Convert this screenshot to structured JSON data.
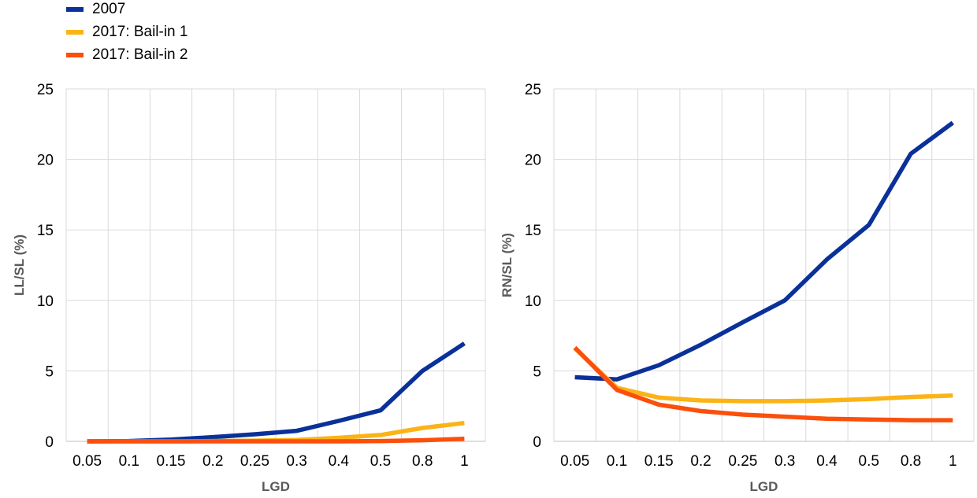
{
  "legend": {
    "items": [
      {
        "label": "2007",
        "color": "#0a3199"
      },
      {
        "label": "2017: Bail-in 1",
        "color": "#fbb316"
      },
      {
        "label": "2017: Bail-in 2",
        "color": "#fb4f0c"
      }
    ]
  },
  "chart_data": [
    {
      "type": "line",
      "title": "",
      "xlabel": "LGD",
      "ylabel": "LL/SL (%)",
      "categories": [
        "0.05",
        "0.1",
        "0.15",
        "0.2",
        "0.25",
        "0.3",
        "0.4",
        "0.5",
        "0.8",
        "1"
      ],
      "ylim": [
        0,
        25
      ],
      "yticks": [
        "0",
        "5",
        "10",
        "15",
        "20",
        "25"
      ],
      "grid": true,
      "series": [
        {
          "name": "2007",
          "color": "#0a3199",
          "values": [
            0,
            0.02,
            0.12,
            0.3,
            0.5,
            0.75,
            1.45,
            2.2,
            5.0,
            6.95
          ]
        },
        {
          "name": "2017: Bail-in 1",
          "color": "#fbb316",
          "values": [
            0,
            0,
            0,
            0.02,
            0.05,
            0.1,
            0.25,
            0.45,
            0.95,
            1.3
          ]
        },
        {
          "name": "2017: Bail-in 2",
          "color": "#fb4f0c",
          "values": [
            0,
            0,
            0,
            0,
            0,
            0,
            0,
            0.02,
            0.08,
            0.18
          ]
        }
      ]
    },
    {
      "type": "line",
      "title": "",
      "xlabel": "LGD",
      "ylabel": "RN/SL (%)",
      "categories": [
        "0.05",
        "0.1",
        "0.15",
        "0.2",
        "0.25",
        "0.3",
        "0.4",
        "0.5",
        "0.8",
        "1"
      ],
      "ylim": [
        0,
        25
      ],
      "yticks": [
        "0",
        "5",
        "10",
        "15",
        "20",
        "25"
      ],
      "grid": true,
      "series": [
        {
          "name": "2007",
          "color": "#0a3199",
          "values": [
            4.55,
            4.4,
            5.4,
            6.85,
            8.45,
            10.0,
            12.9,
            15.35,
            20.4,
            22.6
          ]
        },
        {
          "name": "2017: Bail-in 1",
          "color": "#fbb316",
          "values": [
            6.6,
            3.8,
            3.1,
            2.9,
            2.85,
            2.85,
            2.9,
            3.0,
            3.15,
            3.25
          ]
        },
        {
          "name": "2017: Bail-in 2",
          "color": "#fb4f0c",
          "values": [
            6.65,
            3.65,
            2.6,
            2.15,
            1.9,
            1.75,
            1.6,
            1.55,
            1.5,
            1.5
          ]
        }
      ]
    }
  ]
}
